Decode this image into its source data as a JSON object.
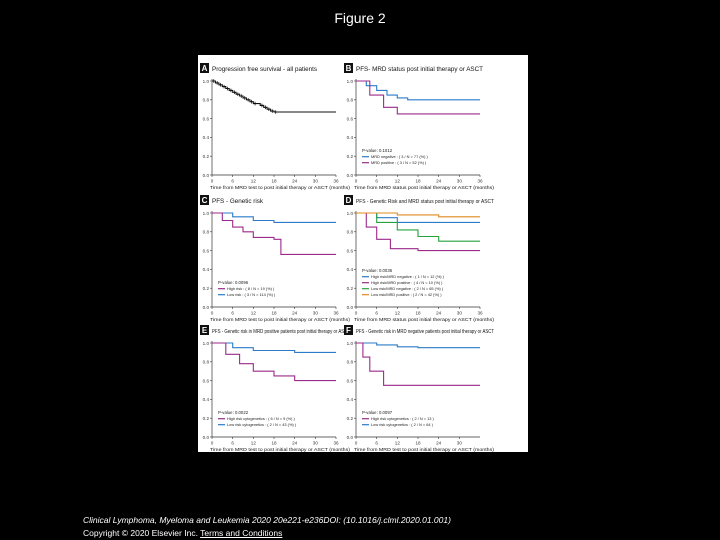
{
  "page": {
    "title": "Figure 2"
  },
  "caption": {
    "citation": "Clinical Lymphoma, Myeloma and Leukemia 2020 20e221-e236DOI: (10.1016/j.clml.2020.01.001)",
    "copyright": "Copyright © 2020 Elsevier Inc.",
    "terms_link": "Terms and Conditions"
  },
  "colors": {
    "black": "#111111",
    "magenta": "#9b2a8a",
    "blue": "#2b7bc9",
    "green": "#27a33c",
    "orange": "#e08a1e"
  },
  "chart_data": [
    {
      "panel": "A",
      "type": "line",
      "title": "Progression free survival - all patients",
      "xlabel": "Time from MRD test to post initial therapy or ASCT (months)",
      "xticks": [
        0,
        6,
        12,
        18,
        24,
        30,
        36
      ],
      "yticks": [
        0.0,
        0.2,
        0.4,
        0.6,
        0.8,
        1.0
      ],
      "xlim": [
        0,
        36
      ],
      "ylim": [
        0,
        1
      ],
      "pvalue": "",
      "legend": [],
      "series": [
        {
          "name": "All patients",
          "color": "#111111",
          "censored": true,
          "x": [
            0,
            1,
            2,
            3,
            4,
            5,
            6,
            7,
            8,
            9,
            10,
            11,
            12,
            14,
            15,
            16,
            17,
            18,
            36
          ],
          "y": [
            1.0,
            0.98,
            0.96,
            0.94,
            0.92,
            0.9,
            0.88,
            0.86,
            0.84,
            0.82,
            0.8,
            0.78,
            0.76,
            0.74,
            0.72,
            0.7,
            0.68,
            0.67,
            0.67
          ]
        }
      ]
    },
    {
      "panel": "B",
      "type": "line",
      "title": "PFS- MRD status post initial therapy or ASCT",
      "xlabel": "Time from MRD status post initial therapy or ASCT (months)",
      "xticks": [
        0,
        6,
        12,
        18,
        24,
        30,
        36
      ],
      "yticks": [
        0.0,
        0.2,
        0.4,
        0.6,
        0.8,
        1.0
      ],
      "xlim": [
        0,
        36
      ],
      "ylim": [
        0,
        1
      ],
      "pvalue": "P-value: 0.1012",
      "legend": [
        "MRD negative : ( 3 / N = 77 (%) )",
        "MRD positive : ( 3 / N = 52 (%) )"
      ],
      "series": [
        {
          "name": "MRD negative",
          "color": "#2b7bc9",
          "censored": false,
          "x": [
            0,
            3,
            6,
            9,
            12,
            15,
            36
          ],
          "y": [
            1.0,
            0.95,
            0.9,
            0.85,
            0.82,
            0.8,
            0.8
          ]
        },
        {
          "name": "MRD positive",
          "color": "#9b2a8a",
          "censored": false,
          "x": [
            0,
            4,
            8,
            12,
            36
          ],
          "y": [
            1.0,
            0.85,
            0.72,
            0.65,
            0.65
          ]
        }
      ]
    },
    {
      "panel": "C",
      "type": "line",
      "title": "PFS - Genetic risk",
      "xlabel": "Time from MRD test to post initial therapy or ASCT (months)",
      "xticks": [
        0,
        6,
        12,
        18,
        24,
        30,
        36
      ],
      "yticks": [
        0.0,
        0.2,
        0.4,
        0.6,
        0.8,
        1.0
      ],
      "xlim": [
        0,
        36
      ],
      "ylim": [
        0,
        1
      ],
      "pvalue": "P-value: 0.0096",
      "legend": [
        "High risk : ( 8 / N = 19 (%) )",
        "Low risk : ( 3 / N = 114 (%) )"
      ],
      "series": [
        {
          "name": "Low risk",
          "color": "#2b7bc9",
          "censored": false,
          "x": [
            0,
            6,
            12,
            18,
            36
          ],
          "y": [
            1.0,
            0.96,
            0.92,
            0.9,
            0.9
          ]
        },
        {
          "name": "High risk",
          "color": "#9b2a8a",
          "censored": false,
          "x": [
            0,
            3,
            6,
            9,
            12,
            18,
            20,
            36
          ],
          "y": [
            1.0,
            0.92,
            0.85,
            0.8,
            0.74,
            0.72,
            0.56,
            0.56
          ]
        }
      ]
    },
    {
      "panel": "D",
      "type": "line",
      "title": "PFS - Genetic Risk and MRD status post initial therapy or ASCT",
      "xlabel": "Time from MRD status post initial therapy or ASCT (months)",
      "xticks": [
        0,
        6,
        12,
        18,
        24,
        30,
        36
      ],
      "yticks": [
        0.0,
        0.2,
        0.4,
        0.6,
        0.8,
        1.0
      ],
      "xlim": [
        0,
        36
      ],
      "ylim": [
        0,
        1
      ],
      "pvalue": "P-value: 0.0036",
      "legend": [
        "High risk/MRD negative : ( 1 / N = 12 (%) )",
        "High risk/MRD positive : ( 4 / N = 10 (%) )",
        "Low risk/MRD negative : ( 2 / N = 65 (%) )",
        "Low risk/MRD positive : ( 2 / N = 42 (%) )"
      ],
      "series": [
        {
          "name": "High risk/MRD negative",
          "color": "#2b7bc9",
          "censored": false,
          "x": [
            0,
            6,
            12,
            36
          ],
          "y": [
            1.0,
            0.95,
            0.9,
            0.9
          ]
        },
        {
          "name": "High risk/MRD positive",
          "color": "#9b2a8a",
          "censored": false,
          "x": [
            0,
            3,
            6,
            10,
            18,
            36
          ],
          "y": [
            1.0,
            0.85,
            0.72,
            0.62,
            0.6,
            0.6
          ]
        },
        {
          "name": "Low risk/MRD negative",
          "color": "#27a33c",
          "censored": false,
          "x": [
            0,
            6,
            12,
            18,
            24,
            36
          ],
          "y": [
            1.0,
            0.9,
            0.82,
            0.75,
            0.7,
            0.7
          ]
        },
        {
          "name": "Low risk/MRD positive",
          "color": "#e08a1e",
          "censored": false,
          "x": [
            0,
            12,
            24,
            36
          ],
          "y": [
            1.0,
            0.98,
            0.96,
            0.96
          ]
        }
      ]
    },
    {
      "panel": "E",
      "type": "line",
      "title": "PFS - Genetic risk in MRD positive patients post initial therapy or ASCT",
      "xlabel": "Time from MRD test to post initial therapy or ASCT (months)",
      "xticks": [
        0,
        6,
        12,
        18,
        24,
        30,
        36
      ],
      "yticks": [
        0.0,
        0.2,
        0.4,
        0.6,
        0.8,
        1.0
      ],
      "xlim": [
        0,
        36
      ],
      "ylim": [
        0,
        1
      ],
      "pvalue": "P-value: 0.0022",
      "legend": [
        "High risk cytogenetics : ( 6 / N = 9 (%) )",
        "Low risk cytogenetics : ( 2 / N = 43 (%) )"
      ],
      "series": [
        {
          "name": "Low risk cytogenetics",
          "color": "#2b7bc9",
          "censored": false,
          "x": [
            0,
            6,
            12,
            24,
            36
          ],
          "y": [
            1.0,
            0.95,
            0.92,
            0.9,
            0.9
          ]
        },
        {
          "name": "High risk cytogenetics",
          "color": "#9b2a8a",
          "censored": false,
          "x": [
            0,
            4,
            8,
            12,
            18,
            24,
            36
          ],
          "y": [
            1.0,
            0.88,
            0.78,
            0.7,
            0.65,
            0.6,
            0.6
          ]
        }
      ]
    },
    {
      "panel": "F",
      "type": "line",
      "title": "PFS - Genetic risk in MRD negative patients post initial therapy or ASCT",
      "xlabel": "Time from MRD test to post initial therapy or ASCT (months)",
      "xticks": [
        0,
        6,
        12,
        18,
        24,
        30
      ],
      "yticks": [
        0.0,
        0.2,
        0.4,
        0.6,
        0.8,
        1.0
      ],
      "xlim": [
        0,
        36
      ],
      "ylim": [
        0,
        1
      ],
      "pvalue": "P-value: 0.0097",
      "legend": [
        "High risk cytogenetics : ( 2 / N = 13 )",
        "Low risk cytogenetics : ( 2 / N = 64 )"
      ],
      "series": [
        {
          "name": "Low risk cytogenetics",
          "color": "#2b7bc9",
          "censored": false,
          "x": [
            0,
            6,
            12,
            18,
            36
          ],
          "y": [
            1.0,
            0.98,
            0.96,
            0.95,
            0.95
          ]
        },
        {
          "name": "High risk cytogenetics",
          "color": "#9b2a8a",
          "censored": false,
          "x": [
            0,
            2,
            4,
            8,
            36
          ],
          "y": [
            1.0,
            0.85,
            0.7,
            0.55,
            0.55
          ]
        }
      ]
    }
  ]
}
